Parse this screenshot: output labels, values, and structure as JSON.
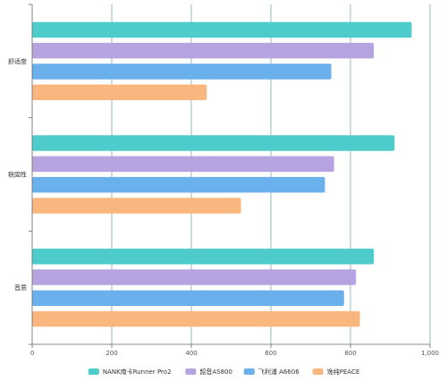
{
  "chart_data": {
    "type": "bar",
    "orientation": "horizontal",
    "categories": [
      "舒适度",
      "稳固性",
      "音质"
    ],
    "series": [
      {
        "name": "NANK南卡Runner Pro2",
        "color": "#4ecbcb",
        "values": [
          955,
          912,
          860
        ]
      },
      {
        "name": "韶音AS800",
        "color": "#b6a4e0",
        "values": [
          860,
          760,
          815
        ]
      },
      {
        "name": "飞利浦 A6606",
        "color": "#6ab0ec",
        "values": [
          753,
          737,
          785
        ]
      },
      {
        "name": "逸纯PEACE",
        "color": "#f9b77f",
        "values": [
          440,
          526,
          825
        ]
      }
    ],
    "xlim": [
      0,
      1000
    ],
    "xticks": [
      0,
      200,
      400,
      600,
      800,
      1000
    ],
    "xtick_labels": [
      "0",
      "200",
      "400",
      "600",
      "800",
      "1,000"
    ],
    "grid": true,
    "legend_position": "bottom"
  }
}
